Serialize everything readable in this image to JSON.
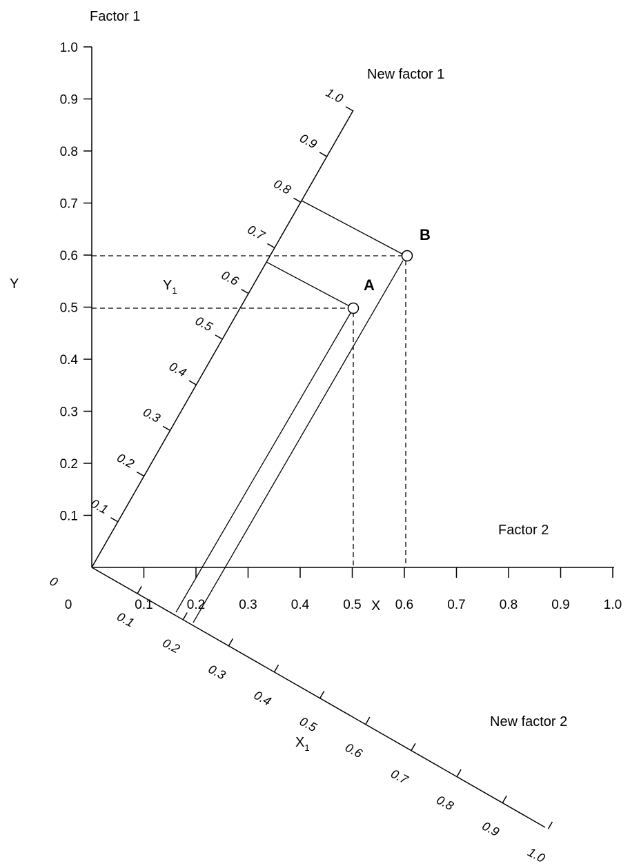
{
  "labels": {
    "factor1": "Factor 1",
    "factor2": "Factor 2",
    "new_factor1": "New factor 1",
    "new_factor2": "New factor 2",
    "y": "Y",
    "x": "X",
    "y1": "Y",
    "y1_sub": "1",
    "x1": "X",
    "x1_sub": "1"
  },
  "y_axis_ticks": [
    "1.0",
    "0.9",
    "0.8",
    "0.7",
    "0.6",
    "0.5",
    "0.4",
    "0.3",
    "0.2",
    "0.1"
  ],
  "x_axis_ticks": [
    "0",
    "0.1",
    "0.2",
    "0.3",
    "0.4",
    "0.5",
    "0.6",
    "0.7",
    "0.8",
    "0.9",
    "1.0"
  ],
  "new_factor1_ticks": [
    "0.1",
    "0.2",
    "0.3",
    "0.4",
    "0.5",
    "0.6",
    "0.7",
    "0.8",
    "0.9",
    "1.0"
  ],
  "new_factor2_ticks": [
    "0",
    "0.1",
    "0.2",
    "0.3",
    "0.4",
    "0.5",
    "0.6",
    "0.7",
    "0.8",
    "0.9",
    "1.0"
  ],
  "points": [
    {
      "name": "A",
      "x": 0.5,
      "y": 0.5
    },
    {
      "name": "B",
      "x": 0.6,
      "y": 0.6
    }
  ]
}
